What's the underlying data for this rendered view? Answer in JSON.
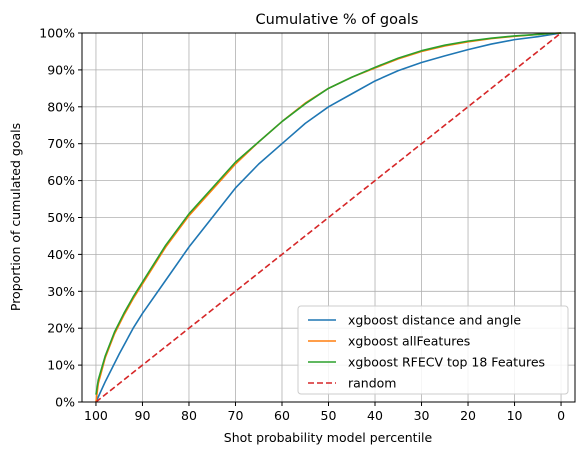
{
  "chart_data": {
    "type": "line",
    "title": "Cumulative % of goals",
    "xlabel": "Shot probability model percentile",
    "ylabel": "Proportion of cumulated goals",
    "xlim": [
      103,
      -3
    ],
    "ylim": [
      0,
      100
    ],
    "x_reversed": true,
    "xticks": [
      100,
      90,
      80,
      70,
      60,
      50,
      40,
      30,
      20,
      10,
      0
    ],
    "xtick_labels": [
      "100",
      "90",
      "80",
      "70",
      "60",
      "50",
      "40",
      "30",
      "20",
      "10",
      "0"
    ],
    "yticks": [
      0,
      10,
      20,
      30,
      40,
      50,
      60,
      70,
      80,
      90,
      100
    ],
    "ytick_labels": [
      "0%",
      "10%",
      "20%",
      "30%",
      "40%",
      "50%",
      "60%",
      "70%",
      "80%",
      "90%",
      "100%"
    ],
    "grid": true,
    "legend_position": "lower-right",
    "series": [
      {
        "name": "xgboost distance and angle",
        "color": "#1f77b4",
        "style": "solid",
        "x": [
          100,
          98,
          95,
          92,
          90,
          85,
          80,
          75,
          70,
          65,
          60,
          55,
          50,
          45,
          40,
          35,
          30,
          25,
          20,
          15,
          10,
          5,
          2,
          0
        ],
        "y": [
          0,
          5.5,
          13,
          20,
          24,
          33,
          42,
          50,
          58,
          64.5,
          70,
          75.5,
          80,
          83.5,
          87,
          89.8,
          92,
          93.8,
          95.5,
          97,
          98.2,
          99,
          99.6,
          100
        ]
      },
      {
        "name": "xgboost allFeatures",
        "color": "#ff7f0e",
        "style": "solid",
        "x": [
          100,
          99.5,
          98,
          96,
          94,
          92,
          90,
          85,
          80,
          75,
          70,
          65,
          60,
          55,
          50,
          45,
          40,
          35,
          30,
          25,
          20,
          15,
          10,
          5,
          2,
          0
        ],
        "y": [
          0,
          5,
          12,
          18.5,
          23.5,
          28,
          32,
          42,
          50.5,
          57.5,
          64.5,
          70.5,
          76,
          81,
          85,
          88,
          90.5,
          93,
          95,
          96.5,
          97.6,
          98.5,
          99.1,
          99.6,
          99.9,
          100
        ]
      },
      {
        "name": "xgboost RFECV top 18 Features",
        "color": "#2ca02c",
        "style": "solid",
        "x": [
          100,
          99.5,
          98,
          96,
          94,
          92,
          90,
          85,
          80,
          75,
          70,
          65,
          60,
          55,
          50,
          45,
          40,
          35,
          30,
          25,
          20,
          15,
          10,
          5,
          2,
          0
        ],
        "y": [
          2,
          6,
          12.5,
          19,
          24,
          28.5,
          32.5,
          42.5,
          51,
          58,
          65,
          70.5,
          76,
          80.8,
          85,
          88,
          90.7,
          93.2,
          95.2,
          96.7,
          97.8,
          98.6,
          99.2,
          99.6,
          99.9,
          100
        ]
      },
      {
        "name": "random",
        "color": "#d62728",
        "style": "dashed",
        "x": [
          100,
          0
        ],
        "y": [
          0,
          100
        ]
      }
    ]
  }
}
